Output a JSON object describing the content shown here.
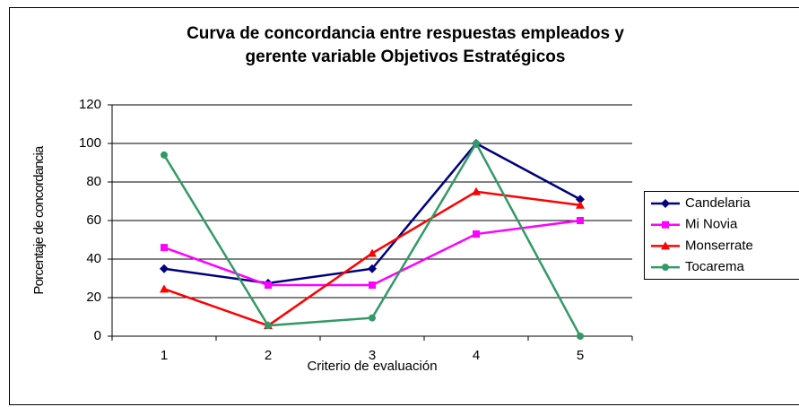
{
  "chart_data": {
    "type": "line",
    "title": [
      "Curva de concordancia entre respuestas empleados y",
      "gerente variable Objetivos Estratégicos"
    ],
    "x_label": "Criterio de evaluación",
    "y_label": "Porcentaje de concordancia",
    "categories": [
      "1",
      "2",
      "3",
      "4",
      "5"
    ],
    "series": [
      {
        "name": "Candelaria",
        "color": "#000080",
        "marker": "diamond",
        "values": [
          35,
          27.5,
          35,
          100,
          71
        ]
      },
      {
        "name": "Mi Novia",
        "color": "#ff00ff",
        "marker": "square",
        "values": [
          46,
          26.5,
          26.5,
          53,
          60
        ]
      },
      {
        "name": "Monserrate",
        "color": "#ff0000",
        "marker": "triangle",
        "values": [
          24.5,
          5.5,
          43,
          75,
          68
        ]
      },
      {
        "name": "Tocarema",
        "color": "#339966",
        "marker": "circle",
        "values": [
          94,
          5.5,
          9.5,
          100,
          0
        ]
      }
    ],
    "ylim": [
      0,
      120
    ],
    "yticks": [
      0,
      20,
      40,
      60,
      80,
      100,
      120
    ],
    "grid": true,
    "legend": "right"
  }
}
